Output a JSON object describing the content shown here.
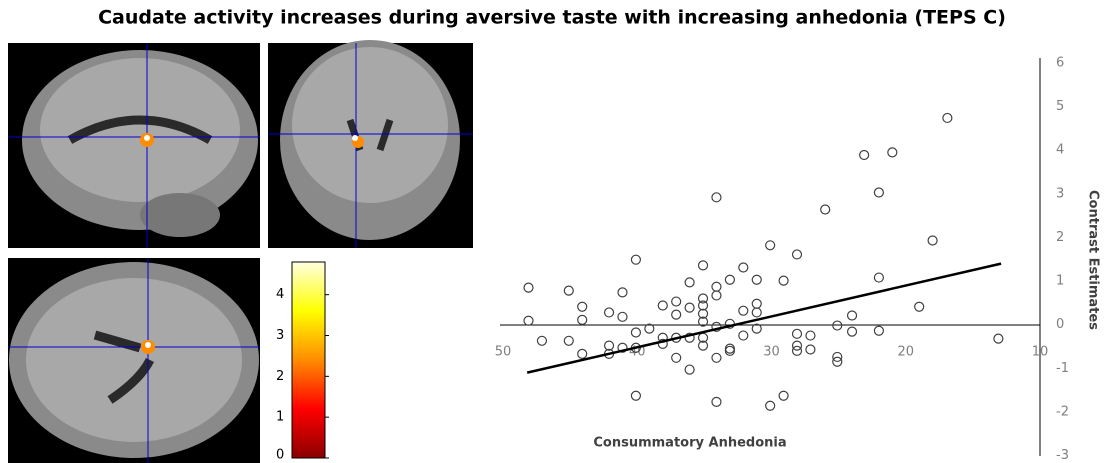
{
  "chart_data": {
    "type": "scatter",
    "title": "Caudate activity increases during aversive taste with increasing anhedonia (TEPS  C)",
    "xlabel": "Consummatory Anhedonia",
    "ylabel": "Contrast Estimates",
    "xlim": [
      50,
      10
    ],
    "ylim": [
      -3,
      6
    ],
    "xticks": [
      50,
      40,
      30,
      20,
      10
    ],
    "yticks": [
      -3,
      -2,
      -1,
      0,
      1,
      2,
      3,
      4,
      5,
      6
    ],
    "marker_color": "#404040",
    "trendline_color": "#000000",
    "series": [
      {
        "x": [
          48.1,
          48.1,
          47.1,
          45.1,
          44.1,
          44.1,
          45.1,
          44.1,
          42.1,
          42.1,
          42.1,
          41.1,
          41.1,
          41.1,
          40.1,
          40.1,
          40.1,
          40.1,
          39.1,
          38.1,
          38.1,
          38.1,
          37.1,
          37.1,
          37.1,
          37.1,
          36.1,
          36.1,
          36.1,
          36.1,
          35.1,
          35.1,
          35.1,
          35.1,
          35.1,
          35.1,
          35.1,
          34.1,
          34.1,
          34.1,
          34.1,
          34.1,
          34.1,
          33.1,
          33.1,
          33.1,
          33.1,
          32.1,
          32.1,
          32.1,
          31.1,
          31.1,
          31.1,
          31.1,
          30.1,
          30.1,
          29.1,
          29.1,
          28.1,
          28.1,
          28.1,
          28.1,
          27.1,
          27.1,
          26.0,
          25.1,
          25.1,
          25.1,
          24.0,
          24.0,
          23.1,
          22.0,
          22.0,
          22.0,
          21.0,
          19.0,
          18.0,
          16.9,
          13.1
        ],
        "values": [
          0.85,
          0.09,
          -0.37,
          0.78,
          0.41,
          0.11,
          -0.37,
          -0.67,
          0.28,
          -0.48,
          -0.67,
          0.74,
          0.18,
          -0.53,
          1.49,
          -0.18,
          -0.53,
          -1.63,
          -0.09,
          0.44,
          -0.3,
          -0.44,
          0.53,
          0.23,
          -0.3,
          -0.76,
          0.97,
          0.39,
          -0.3,
          -1.03,
          1.36,
          0.6,
          0.44,
          0.25,
          0.07,
          -0.3,
          -0.48,
          2.92,
          0.87,
          0.67,
          -0.05,
          -0.76,
          -1.77,
          1.03,
          0.02,
          -0.55,
          -0.6,
          1.31,
          0.32,
          -0.25,
          1.03,
          0.48,
          0.28,
          -0.09,
          1.82,
          -1.86,
          1.01,
          -1.63,
          1.61,
          -0.21,
          -0.48,
          -0.6,
          -0.25,
          -0.57,
          2.64,
          -0.02,
          -0.74,
          -0.85,
          0.21,
          -0.16,
          3.89,
          3.03,
          1.08,
          -0.14,
          3.95,
          0.41,
          1.93,
          4.74,
          -0.32
        ]
      }
    ],
    "trendline": {
      "x": [
        48.2,
        12.9
      ],
      "values": [
        -1.1,
        1.4
      ]
    },
    "colorbar": {
      "clim": [
        0,
        4.8
      ],
      "ticks": [
        0,
        1,
        2,
        3,
        4
      ],
      "colors": [
        "#8b0000",
        "#ff0000",
        "#ff8c00",
        "#ffff00",
        "#ffffe0"
      ]
    }
  }
}
